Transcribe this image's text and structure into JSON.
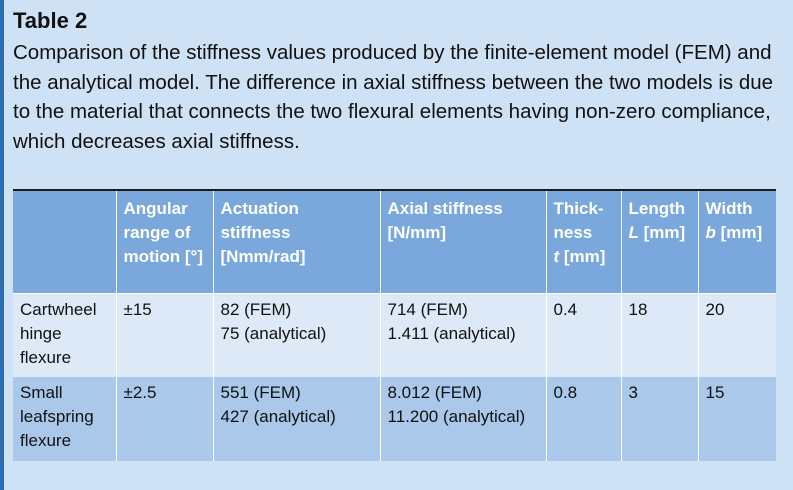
{
  "table": {
    "label": "Table 2",
    "caption": "Comparison of the stiffness values produced by the finite-element model (FEM) and the analytical model. The difference in axial stiffness between the two models is due to the material that connects the two flexural elements having non-zero compliance, which decreases axial stiffness.",
    "headers": {
      "blank": "",
      "angular": [
        "Angular",
        "range of",
        "motion [°]"
      ],
      "actuation": [
        "Actuation",
        "stiffness",
        "[Nmm/rad]"
      ],
      "axial": [
        "Axial stiffness",
        "[N/mm]"
      ],
      "thickness": {
        "l1": "Thick-",
        "l2": "ness",
        "sym": "t",
        "unit": " [mm]"
      },
      "length": {
        "l1": "Length",
        "sym": "L",
        "unit": " [mm]"
      },
      "width": {
        "l1": "Width",
        "sym": "b",
        "unit": " [mm]"
      }
    },
    "rows": [
      {
        "name": [
          "Cartwheel",
          "hinge",
          "flexure"
        ],
        "angular": "±15",
        "actuation": [
          "82 (FEM)",
          "75 (analytical)"
        ],
        "axial": [
          "714 (FEM)",
          "1.411 (analytical)"
        ],
        "thickness": "0.4",
        "length": "18",
        "width": "20"
      },
      {
        "name": [
          "Small",
          "leafspring",
          "flexure"
        ],
        "angular": "±2.5",
        "actuation": [
          "551 (FEM)",
          "427 (analytical)"
        ],
        "axial": [
          "8.012 (FEM)",
          "11.200 (analytical)"
        ],
        "thickness": "0.8",
        "length": "3",
        "width": "15"
      }
    ]
  }
}
